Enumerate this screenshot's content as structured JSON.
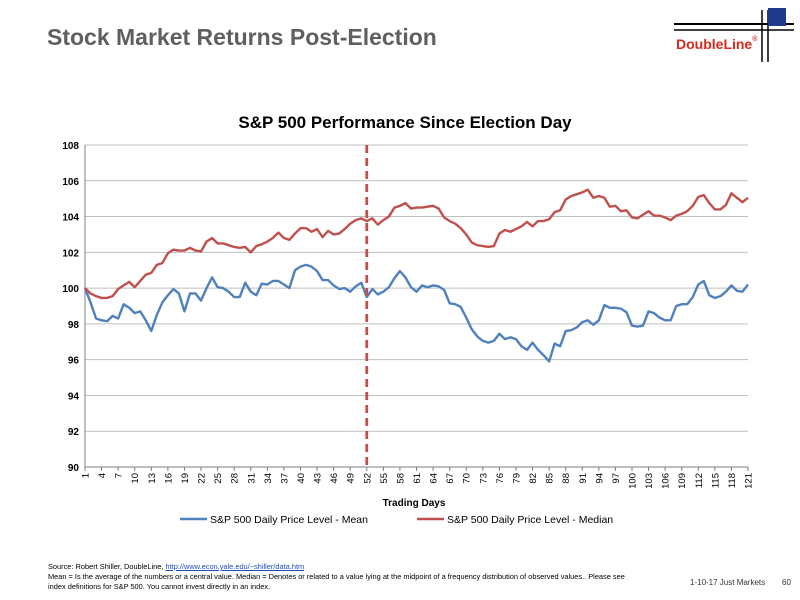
{
  "slide": {
    "title": "Stock Market Returns Post-Election",
    "logo_text": "DoubleLine",
    "logo_mark": "®",
    "footer_date": "1-10-17 Just Markets",
    "page_number": "60"
  },
  "source": {
    "prefix": "Source: Robert Shiller, DoubleLine, ",
    "link_text": "http://www.econ.yale.edu/~shiller/data.htm",
    "line2": "Mean = Is the average of the numbers or a central value. Median = Denotes or related to a value lying at the midpoint of a frequency distribution of observed values.. Please see",
    "line3": "index definitions for S&P 500. You cannot invest directly in an index."
  },
  "colors": {
    "mean": "#4f81bd",
    "median": "#c0504d",
    "election_line": "#c0504d",
    "logo": "#d9291c"
  },
  "chart_data": {
    "type": "line",
    "title": "S&P 500 Performance Since Election Day",
    "xlabel": "Trading Days",
    "ylabel": "",
    "ylim": [
      90,
      108
    ],
    "yticks": [
      90,
      92,
      94,
      96,
      98,
      100,
      102,
      104,
      106,
      108
    ],
    "xlim": [
      1,
      121
    ],
    "xticks": [
      1,
      4,
      7,
      10,
      13,
      16,
      19,
      22,
      25,
      28,
      31,
      34,
      37,
      40,
      43,
      46,
      49,
      52,
      55,
      58,
      61,
      64,
      67,
      70,
      73,
      76,
      79,
      82,
      85,
      88,
      91,
      94,
      97,
      100,
      103,
      106,
      109,
      112,
      115,
      118,
      121
    ],
    "election_day_x": 52,
    "grid": "horizontal",
    "legend_position": "bottom",
    "series": [
      {
        "name": "S&P 500 Daily Price Level - Mean",
        "key": "mean",
        "points": [
          [
            1,
            100.0
          ],
          [
            2,
            99.2
          ],
          [
            3,
            98.3
          ],
          [
            4,
            98.2
          ],
          [
            5,
            98.15
          ],
          [
            6,
            98.45
          ],
          [
            7,
            98.3
          ],
          [
            8,
            99.1
          ],
          [
            9,
            98.9
          ],
          [
            10,
            98.6
          ],
          [
            11,
            98.7
          ],
          [
            12,
            98.2
          ],
          [
            13,
            97.6
          ],
          [
            14,
            98.5
          ],
          [
            15,
            99.2
          ],
          [
            16,
            99.6
          ],
          [
            17,
            99.95
          ],
          [
            18,
            99.7
          ],
          [
            19,
            98.7
          ],
          [
            20,
            99.7
          ],
          [
            21,
            99.7
          ],
          [
            22,
            99.3
          ],
          [
            23,
            100.0
          ],
          [
            24,
            100.6
          ],
          [
            25,
            100.05
          ],
          [
            26,
            100.0
          ],
          [
            27,
            99.8
          ],
          [
            28,
            99.5
          ],
          [
            29,
            99.5
          ],
          [
            30,
            100.3
          ],
          [
            31,
            99.8
          ],
          [
            32,
            99.6
          ],
          [
            33,
            100.25
          ],
          [
            34,
            100.2
          ],
          [
            35,
            100.4
          ],
          [
            36,
            100.4
          ],
          [
            37,
            100.2
          ],
          [
            38,
            100.0
          ],
          [
            39,
            101.0
          ],
          [
            40,
            101.2
          ],
          [
            41,
            101.3
          ],
          [
            42,
            101.2
          ],
          [
            43,
            100.95
          ],
          [
            44,
            100.45
          ],
          [
            45,
            100.45
          ],
          [
            46,
            100.15
          ],
          [
            47,
            99.95
          ],
          [
            48,
            100.0
          ],
          [
            49,
            99.8
          ],
          [
            50,
            100.1
          ],
          [
            51,
            100.3
          ],
          [
            52,
            99.5
          ],
          [
            53,
            99.95
          ],
          [
            54,
            99.65
          ],
          [
            55,
            99.8
          ],
          [
            56,
            100.05
          ],
          [
            57,
            100.55
          ],
          [
            58,
            100.95
          ],
          [
            59,
            100.6
          ],
          [
            60,
            100.05
          ],
          [
            61,
            99.8
          ],
          [
            62,
            100.15
          ],
          [
            63,
            100.05
          ],
          [
            64,
            100.15
          ],
          [
            65,
            100.1
          ],
          [
            66,
            99.9
          ],
          [
            67,
            99.15
          ],
          [
            68,
            99.1
          ],
          [
            69,
            98.95
          ],
          [
            70,
            98.35
          ],
          [
            71,
            97.7
          ],
          [
            72,
            97.3
          ],
          [
            73,
            97.05
          ],
          [
            74,
            96.95
          ],
          [
            75,
            97.05
          ],
          [
            76,
            97.45
          ],
          [
            77,
            97.15
          ],
          [
            78,
            97.25
          ],
          [
            79,
            97.15
          ],
          [
            80,
            96.75
          ],
          [
            81,
            96.55
          ],
          [
            82,
            96.95
          ],
          [
            83,
            96.55
          ],
          [
            84,
            96.25
          ],
          [
            85,
            95.9
          ],
          [
            86,
            96.9
          ],
          [
            87,
            96.75
          ],
          [
            88,
            97.6
          ],
          [
            89,
            97.65
          ],
          [
            90,
            97.8
          ],
          [
            91,
            98.1
          ],
          [
            92,
            98.2
          ],
          [
            93,
            97.95
          ],
          [
            94,
            98.2
          ],
          [
            95,
            99.05
          ],
          [
            96,
            98.9
          ],
          [
            97,
            98.9
          ],
          [
            98,
            98.85
          ],
          [
            99,
            98.65
          ],
          [
            100,
            97.9
          ],
          [
            101,
            97.85
          ],
          [
            102,
            97.9
          ],
          [
            103,
            98.7
          ],
          [
            104,
            98.6
          ],
          [
            105,
            98.35
          ],
          [
            106,
            98.2
          ],
          [
            107,
            98.2
          ],
          [
            108,
            99.0
          ],
          [
            109,
            99.1
          ],
          [
            110,
            99.1
          ],
          [
            111,
            99.5
          ],
          [
            112,
            100.2
          ],
          [
            113,
            100.4
          ],
          [
            114,
            99.6
          ],
          [
            115,
            99.45
          ],
          [
            116,
            99.55
          ],
          [
            117,
            99.8
          ],
          [
            118,
            100.15
          ],
          [
            119,
            99.85
          ],
          [
            120,
            99.8
          ],
          [
            121,
            100.2
          ]
        ]
      },
      {
        "name": "S&P 500 Daily Price Level - Median",
        "key": "median",
        "points": [
          [
            1,
            100.0
          ],
          [
            2,
            99.7
          ],
          [
            3,
            99.55
          ],
          [
            4,
            99.45
          ],
          [
            5,
            99.45
          ],
          [
            6,
            99.55
          ],
          [
            7,
            99.95
          ],
          [
            8,
            100.15
          ],
          [
            9,
            100.35
          ],
          [
            10,
            100.05
          ],
          [
            11,
            100.4
          ],
          [
            12,
            100.75
          ],
          [
            13,
            100.85
          ],
          [
            14,
            101.3
          ],
          [
            15,
            101.4
          ],
          [
            16,
            101.95
          ],
          [
            17,
            102.15
          ],
          [
            18,
            102.1
          ],
          [
            19,
            102.1
          ],
          [
            20,
            102.25
          ],
          [
            21,
            102.1
          ],
          [
            22,
            102.05
          ],
          [
            23,
            102.6
          ],
          [
            24,
            102.8
          ],
          [
            25,
            102.5
          ],
          [
            26,
            102.5
          ],
          [
            27,
            102.4
          ],
          [
            28,
            102.3
          ],
          [
            29,
            102.25
          ],
          [
            30,
            102.3
          ],
          [
            31,
            102.0
          ],
          [
            32,
            102.35
          ],
          [
            33,
            102.45
          ],
          [
            34,
            102.6
          ],
          [
            35,
            102.8
          ],
          [
            36,
            103.1
          ],
          [
            37,
            102.8
          ],
          [
            38,
            102.7
          ],
          [
            39,
            103.05
          ],
          [
            40,
            103.35
          ],
          [
            41,
            103.35
          ],
          [
            42,
            103.15
          ],
          [
            43,
            103.3
          ],
          [
            44,
            102.85
          ],
          [
            45,
            103.2
          ],
          [
            46,
            103.0
          ],
          [
            47,
            103.05
          ],
          [
            48,
            103.3
          ],
          [
            49,
            103.6
          ],
          [
            50,
            103.8
          ],
          [
            51,
            103.9
          ],
          [
            52,
            103.75
          ],
          [
            53,
            103.9
          ],
          [
            54,
            103.55
          ],
          [
            55,
            103.8
          ],
          [
            56,
            104.0
          ],
          [
            57,
            104.5
          ],
          [
            58,
            104.6
          ],
          [
            59,
            104.75
          ],
          [
            60,
            104.45
          ],
          [
            61,
            104.5
          ],
          [
            62,
            104.5
          ],
          [
            63,
            104.55
          ],
          [
            64,
            104.6
          ],
          [
            65,
            104.45
          ],
          [
            66,
            103.95
          ],
          [
            67,
            103.75
          ],
          [
            68,
            103.6
          ],
          [
            69,
            103.35
          ],
          [
            70,
            103.0
          ],
          [
            71,
            102.55
          ],
          [
            72,
            102.4
          ],
          [
            73,
            102.35
          ],
          [
            74,
            102.3
          ],
          [
            75,
            102.35
          ],
          [
            76,
            103.05
          ],
          [
            77,
            103.25
          ],
          [
            78,
            103.15
          ],
          [
            79,
            103.3
          ],
          [
            80,
            103.45
          ],
          [
            81,
            103.7
          ],
          [
            82,
            103.45
          ],
          [
            83,
            103.75
          ],
          [
            84,
            103.75
          ],
          [
            85,
            103.85
          ],
          [
            86,
            104.25
          ],
          [
            87,
            104.35
          ],
          [
            88,
            104.95
          ],
          [
            89,
            105.15
          ],
          [
            90,
            105.25
          ],
          [
            91,
            105.35
          ],
          [
            92,
            105.5
          ],
          [
            93,
            105.05
          ],
          [
            94,
            105.15
          ],
          [
            95,
            105.05
          ],
          [
            96,
            104.55
          ],
          [
            97,
            104.6
          ],
          [
            98,
            104.3
          ],
          [
            99,
            104.35
          ],
          [
            100,
            103.95
          ],
          [
            101,
            103.9
          ],
          [
            102,
            104.1
          ],
          [
            103,
            104.3
          ],
          [
            104,
            104.05
          ],
          [
            105,
            104.05
          ],
          [
            106,
            103.95
          ],
          [
            107,
            103.8
          ],
          [
            108,
            104.05
          ],
          [
            109,
            104.15
          ],
          [
            110,
            104.3
          ],
          [
            111,
            104.6
          ],
          [
            112,
            105.1
          ],
          [
            113,
            105.2
          ],
          [
            114,
            104.75
          ],
          [
            115,
            104.4
          ],
          [
            116,
            104.4
          ],
          [
            117,
            104.65
          ],
          [
            118,
            105.3
          ],
          [
            119,
            105.05
          ],
          [
            120,
            104.8
          ],
          [
            121,
            105.05
          ]
        ]
      }
    ]
  }
}
